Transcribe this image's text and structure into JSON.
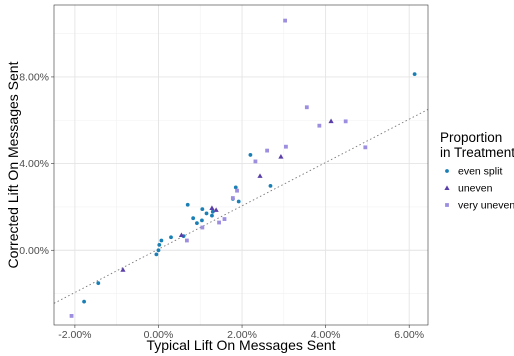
{
  "chart_data": {
    "type": "scatter",
    "xlabel": "Typical Lift On Messages Sent",
    "ylabel": "Corrected Lift On Messages Sent",
    "xlim": [
      -0.025,
      0.0645
    ],
    "ylim": [
      -0.0345,
      0.1132
    ],
    "x_ticks": [
      -0.02,
      0.0,
      0.02,
      0.04,
      0.06
    ],
    "x_tick_labels": [
      "-2.00%",
      "0.00%",
      "2.00%",
      "4.00%",
      "6.00%"
    ],
    "y_ticks": [
      0.0,
      0.04,
      0.08
    ],
    "y_tick_labels": [
      "0.00%",
      "4.00%",
      "8.00%"
    ],
    "grid": true,
    "reference_line": {
      "style": "dotted",
      "color": "#777777",
      "x": [
        -0.025,
        0.0645
      ],
      "y": [
        -0.0245,
        0.065
      ]
    },
    "legend": {
      "title_lines": [
        "Proportion",
        "in Treatment"
      ],
      "position": "right"
    },
    "series": [
      {
        "name": "even split",
        "marker": "circle",
        "color": "#1a7fb5",
        "points": [
          [
            -0.0178,
            -0.0237
          ],
          [
            -0.0144,
            -0.0152
          ],
          [
            -0.0005,
            -0.0019
          ],
          [
            0.0,
            0.0
          ],
          [
            0.0002,
            0.0025
          ],
          [
            0.0007,
            0.0045
          ],
          [
            0.003,
            0.006
          ],
          [
            0.006,
            0.0065
          ],
          [
            0.007,
            0.021
          ],
          [
            0.0083,
            0.0148
          ],
          [
            0.0092,
            0.0125
          ],
          [
            0.0104,
            0.0138
          ],
          [
            0.0105,
            0.019
          ],
          [
            0.0115,
            0.017
          ],
          [
            0.0128,
            0.016
          ],
          [
            0.013,
            0.0178
          ],
          [
            0.0178,
            0.0237
          ],
          [
            0.0185,
            0.029
          ],
          [
            0.0192,
            0.0225
          ],
          [
            0.022,
            0.044
          ],
          [
            0.0268,
            0.0297
          ],
          [
            0.0613,
            0.0813
          ]
        ]
      },
      {
        "name": "uneven",
        "marker": "triangle",
        "color": "#5b3fa8",
        "points": [
          [
            -0.0085,
            -0.009
          ],
          [
            0.0055,
            0.007
          ],
          [
            0.0128,
            0.0195
          ],
          [
            0.0138,
            0.0186
          ],
          [
            0.0243,
            0.0343
          ],
          [
            0.0293,
            0.0432
          ],
          [
            0.0413,
            0.0596
          ]
        ]
      },
      {
        "name": "very uneven",
        "marker": "square",
        "color": "#9d8ee0",
        "points": [
          [
            -0.0208,
            -0.0303
          ],
          [
            0.0068,
            0.0045
          ],
          [
            0.0105,
            0.0105
          ],
          [
            0.0145,
            0.0128
          ],
          [
            0.0158,
            0.0144
          ],
          [
            0.0178,
            0.0241
          ],
          [
            0.0188,
            0.0275
          ],
          [
            0.0232,
            0.041
          ],
          [
            0.026,
            0.046
          ],
          [
            0.0305,
            0.0478
          ],
          [
            0.0355,
            0.066
          ],
          [
            0.0385,
            0.0575
          ],
          [
            0.0448,
            0.0595
          ],
          [
            0.0495,
            0.0475
          ],
          [
            0.0303,
            0.106
          ]
        ]
      }
    ]
  }
}
